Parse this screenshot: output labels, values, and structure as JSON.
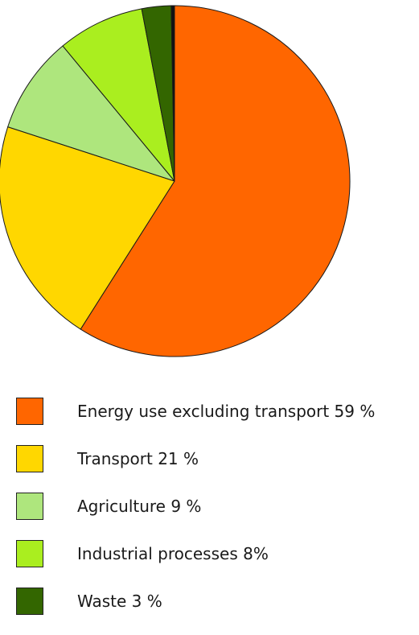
{
  "chart_data": {
    "type": "pie",
    "start": "12-o-clock",
    "direction": "clockwise",
    "slices": [
      {
        "label": "Energy use excluding transport 59 %",
        "value": 59,
        "color": "#FF6600"
      },
      {
        "label": "Transport 21 %",
        "value": 21,
        "color": "#FFD700"
      },
      {
        "label": "Agriculture 9 %",
        "value": 9,
        "color": "#AEE67D"
      },
      {
        "label": "Industrial processes 8%",
        "value": 8,
        "color": "#AAEE1F"
      },
      {
        "label": "Waste 3 %",
        "value": 2.7,
        "color": "#336600"
      },
      {
        "label": "",
        "value": 0.3,
        "color": "#111111"
      }
    ],
    "legend_position": "bottom-left"
  }
}
